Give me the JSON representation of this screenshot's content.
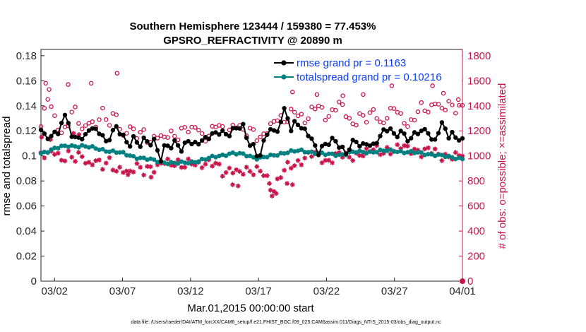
{
  "chart_data": {
    "type": "line",
    "title": [
      "Southern Hemisphere 123444 / 159380 = 77.453%",
      "GPSRO_REFRACTIVITY @ 20890 m"
    ],
    "xlabel": "Mar.01,2015 00:00:00 start",
    "ylabel": "rmse and totalspread",
    "y2label": "# of obs: o=possible; ×=assimilated",
    "footnote": "data file: /Users/raeder/DAI/ATM_forcXX/CAM6_setup/f.e21.FHIST_BGC.f09_025.CAM6assim.011/Diags_NTrS_2015-03/obs_diag_output.nc",
    "xlim": [
      1,
      32
    ],
    "xticks": [
      2,
      7,
      12,
      17,
      22,
      27,
      32
    ],
    "xticklabels": [
      "03/02",
      "03/07",
      "03/12",
      "03/17",
      "03/22",
      "03/27",
      "04/01"
    ],
    "ylim": [
      0,
      0.185
    ],
    "yticks": [
      0,
      0.02,
      0.04,
      0.06,
      0.08,
      0.1,
      0.12,
      0.14,
      0.16,
      0.18
    ],
    "yticklabels": [
      "0",
      "0.02",
      "0.04",
      "0.06",
      "0.08",
      "0.1",
      "0.12",
      "0.14",
      "0.16",
      "0.18"
    ],
    "y2lim": [
      0,
      1850
    ],
    "y2ticks": [
      0,
      200,
      400,
      600,
      800,
      1000,
      1200,
      1400,
      1600,
      1800
    ],
    "y2ticklabels": [
      "0",
      "200",
      "400",
      "600",
      "800",
      "1000",
      "1200",
      "1400",
      "1600",
      "1800"
    ],
    "legend": [
      "rmse grand pr = 0.1163",
      "totalspread grand pr = 0.10216"
    ],
    "colors": {
      "rmse": "#000000",
      "spread": "#008080",
      "obs": "#c8144b"
    },
    "series": [
      {
        "name": "rmse",
        "keyframes": [
          [
            1,
            0.123
          ],
          [
            1.4,
            0.113
          ],
          [
            1.8,
            0.12
          ],
          [
            2.2,
            0.115
          ],
          [
            2.6,
            0.13
          ],
          [
            3.0,
            0.127
          ],
          [
            3.4,
            0.112
          ],
          [
            3.8,
            0.118
          ],
          [
            4.2,
            0.113
          ],
          [
            4.6,
            0.123
          ],
          [
            5.0,
            0.118
          ],
          [
            5.4,
            0.12
          ],
          [
            5.8,
            0.111
          ],
          [
            6.2,
            0.12
          ],
          [
            6.6,
            0.122
          ],
          [
            7.0,
            0.115
          ],
          [
            7.4,
            0.107
          ],
          [
            7.8,
            0.115
          ],
          [
            8.2,
            0.11
          ],
          [
            8.6,
            0.113
          ],
          [
            9.0,
            0.109
          ],
          [
            9.4,
            0.11
          ],
          [
            9.8,
            0.097
          ],
          [
            10.2,
            0.112
          ],
          [
            10.6,
            0.108
          ],
          [
            11.0,
            0.111
          ],
          [
            11.4,
            0.101
          ],
          [
            11.8,
            0.114
          ],
          [
            12.2,
            0.109
          ],
          [
            12.6,
            0.113
          ],
          [
            13.0,
            0.112
          ],
          [
            13.4,
            0.115
          ],
          [
            13.8,
            0.116
          ],
          [
            14.2,
            0.121
          ],
          [
            14.6,
            0.118
          ],
          [
            15.0,
            0.12
          ],
          [
            15.4,
            0.121
          ],
          [
            15.8,
            0.124
          ],
          [
            16.2,
            0.112
          ],
          [
            16.6,
            0.109
          ],
          [
            17.0,
            0.099
          ],
          [
            17.4,
            0.11
          ],
          [
            17.8,
            0.122
          ],
          [
            18.2,
            0.116
          ],
          [
            18.6,
            0.127
          ],
          [
            19.0,
            0.141
          ],
          [
            19.4,
            0.12
          ],
          [
            19.8,
            0.128
          ],
          [
            20.2,
            0.119
          ],
          [
            20.6,
            0.12
          ],
          [
            21.0,
            0.112
          ],
          [
            21.4,
            0.104
          ],
          [
            21.8,
            0.107
          ],
          [
            22.2,
            0.11
          ],
          [
            22.6,
            0.112
          ],
          [
            23.0,
            0.109
          ],
          [
            23.4,
            0.103
          ],
          [
            23.8,
            0.109
          ],
          [
            24.2,
            0.111
          ],
          [
            24.6,
            0.105
          ],
          [
            25.0,
            0.112
          ],
          [
            25.4,
            0.108
          ],
          [
            25.8,
            0.115
          ],
          [
            26.2,
            0.118
          ],
          [
            26.6,
            0.122
          ],
          [
            27.0,
            0.115
          ],
          [
            27.4,
            0.121
          ],
          [
            27.8,
            0.117
          ],
          [
            28.2,
            0.112
          ],
          [
            28.6,
            0.119
          ],
          [
            29.0,
            0.117
          ],
          [
            29.4,
            0.124
          ],
          [
            29.8,
            0.11
          ],
          [
            30.2,
            0.12
          ],
          [
            30.6,
            0.125
          ],
          [
            31.0,
            0.114
          ],
          [
            31.4,
            0.117
          ],
          [
            32,
            0.113
          ]
        ]
      },
      {
        "name": "totalspread",
        "keyframes": [
          [
            1,
            0.102
          ],
          [
            1.5,
            0.104
          ],
          [
            2,
            0.106
          ],
          [
            3,
            0.108
          ],
          [
            4,
            0.108
          ],
          [
            5,
            0.106
          ],
          [
            6,
            0.104
          ],
          [
            7,
            0.102
          ],
          [
            8,
            0.099
          ],
          [
            9,
            0.097
          ],
          [
            10,
            0.095
          ],
          [
            11,
            0.094
          ],
          [
            12,
            0.095
          ],
          [
            13,
            0.097
          ],
          [
            14,
            0.1
          ],
          [
            15,
            0.102
          ],
          [
            16,
            0.101
          ],
          [
            17,
            0.098
          ],
          [
            18,
            0.1
          ],
          [
            19,
            0.103
          ],
          [
            20,
            0.104
          ],
          [
            21,
            0.103
          ],
          [
            22,
            0.101
          ],
          [
            23,
            0.101
          ],
          [
            24,
            0.103
          ],
          [
            25,
            0.103
          ],
          [
            26,
            0.104
          ],
          [
            27,
            0.104
          ],
          [
            28,
            0.103
          ],
          [
            29,
            0.102
          ],
          [
            30,
            0.101
          ],
          [
            31,
            0.099
          ],
          [
            32,
            0.098
          ]
        ]
      },
      {
        "name": "possible",
        "keyframes": [
          [
            1,
            1220
          ],
          [
            1.5,
            1470
          ],
          [
            2,
            1320
          ],
          [
            2.5,
            1180
          ],
          [
            3,
            1250
          ],
          [
            3.5,
            1380
          ],
          [
            4,
            1200
          ],
          [
            4.5,
            1300
          ],
          [
            5,
            1220
          ],
          [
            5.5,
            1350
          ],
          [
            6,
            1250
          ],
          [
            6.5,
            1380
          ],
          [
            7,
            1130
          ],
          [
            7.5,
            1230
          ],
          [
            8,
            1150
          ],
          [
            8.5,
            1220
          ],
          [
            9,
            1100
          ],
          [
            9.5,
            1160
          ],
          [
            10,
            1120
          ],
          [
            10.5,
            1200
          ],
          [
            11,
            1150
          ],
          [
            11.5,
            1230
          ],
          [
            12,
            1180
          ],
          [
            12.5,
            1250
          ],
          [
            13,
            1130
          ],
          [
            13.5,
            1200
          ],
          [
            14,
            1250
          ],
          [
            14.5,
            1180
          ],
          [
            15,
            1230
          ],
          [
            15.5,
            1270
          ],
          [
            16,
            1160
          ],
          [
            16.5,
            1210
          ],
          [
            17,
            1130
          ],
          [
            17.5,
            1200
          ],
          [
            18,
            1250
          ],
          [
            18.5,
            1300
          ],
          [
            19,
            1260
          ],
          [
            19.5,
            1390
          ],
          [
            20,
            1330
          ],
          [
            20.5,
            1250
          ],
          [
            21,
            1380
          ],
          [
            21.5,
            1420
          ],
          [
            22,
            1300
          ],
          [
            22.5,
            1350
          ],
          [
            23,
            1420
          ],
          [
            23.5,
            1330
          ],
          [
            24,
            1250
          ],
          [
            24.5,
            1330
          ],
          [
            25,
            1270
          ],
          [
            25.5,
            1380
          ],
          [
            26,
            1250
          ],
          [
            26.5,
            1330
          ],
          [
            27,
            1380
          ],
          [
            27.5,
            1300
          ],
          [
            28,
            1250
          ],
          [
            28.5,
            1320
          ],
          [
            29,
            1400
          ],
          [
            29.5,
            1330
          ],
          [
            30,
            1450
          ],
          [
            30.5,
            1380
          ],
          [
            31,
            1420
          ],
          [
            31.5,
            1350
          ],
          [
            32,
            1400
          ]
        ],
        "extras": [
          [
            1.35,
            1580
          ],
          [
            1.6,
            1530
          ],
          [
            3.0,
            1570
          ],
          [
            4.7,
            1580
          ],
          [
            6.6,
            1660
          ],
          [
            19.5,
            1510
          ],
          [
            21.3,
            1490
          ],
          [
            23.2,
            1480
          ],
          [
            24.7,
            1490
          ],
          [
            26.8,
            1560
          ],
          [
            27.8,
            1730
          ],
          [
            29.8,
            1560
          ],
          [
            30.6,
            1500
          ],
          [
            31.7,
            1450
          ]
        ]
      },
      {
        "name": "assimilated",
        "keyframes": [
          [
            1,
            1010
          ],
          [
            1.5,
            990
          ],
          [
            2,
            1040
          ],
          [
            2.5,
            980
          ],
          [
            3,
            1020
          ],
          [
            3.5,
            960
          ],
          [
            4,
            1000
          ],
          [
            4.5,
            930
          ],
          [
            5,
            990
          ],
          [
            5.5,
            900
          ],
          [
            6,
            950
          ],
          [
            6.5,
            880
          ],
          [
            7,
            920
          ],
          [
            7.5,
            850
          ],
          [
            8,
            910
          ],
          [
            8.5,
            870
          ],
          [
            9,
            930
          ],
          [
            9.5,
            900
          ],
          [
            10,
            950
          ],
          [
            10.5,
            920
          ],
          [
            11,
            960
          ],
          [
            11.5,
            930
          ],
          [
            12,
            950
          ],
          [
            12.5,
            900
          ],
          [
            13,
            940
          ],
          [
            13.5,
            970
          ],
          [
            14,
            930
          ],
          [
            14.5,
            820
          ],
          [
            15,
            900
          ],
          [
            15.5,
            880
          ],
          [
            16,
            900
          ],
          [
            16.5,
            850
          ],
          [
            17,
            880
          ],
          [
            17.5,
            870
          ],
          [
            18,
            720
          ],
          [
            18.5,
            800
          ],
          [
            19,
            900
          ],
          [
            19.5,
            930
          ],
          [
            20,
            960
          ],
          [
            20.5,
            990
          ],
          [
            21,
            1010
          ],
          [
            21.5,
            990
          ],
          [
            22,
            960
          ],
          [
            22.5,
            990
          ],
          [
            23,
            1010
          ],
          [
            23.5,
            980
          ],
          [
            24,
            1000
          ],
          [
            24.5,
            1030
          ],
          [
            25,
            1020
          ],
          [
            25.5,
            1050
          ],
          [
            26,
            1030
          ],
          [
            26.5,
            1060
          ],
          [
            27,
            1040
          ],
          [
            27.5,
            1070
          ],
          [
            28,
            1050
          ],
          [
            28.5,
            1060
          ],
          [
            29,
            1030
          ],
          [
            29.5,
            1040
          ],
          [
            30,
            1020
          ],
          [
            30.5,
            1000
          ],
          [
            31,
            1010
          ],
          [
            31.5,
            990
          ],
          [
            32,
            1000
          ]
        ],
        "extras": [
          [
            1.05,
            1150
          ],
          [
            1.7,
            1130
          ],
          [
            3.4,
            1180
          ],
          [
            3.8,
            1170
          ],
          [
            15.1,
            770
          ],
          [
            15.5,
            760
          ],
          [
            17.8,
            780
          ],
          [
            18.0,
            680
          ],
          [
            18.3,
            700
          ],
          [
            19.1,
            780
          ],
          [
            19.5,
            770
          ],
          [
            9.1,
            830
          ],
          [
            7.4,
            850
          ]
        ]
      }
    ],
    "endpoint": [
      32,
      0
    ]
  }
}
